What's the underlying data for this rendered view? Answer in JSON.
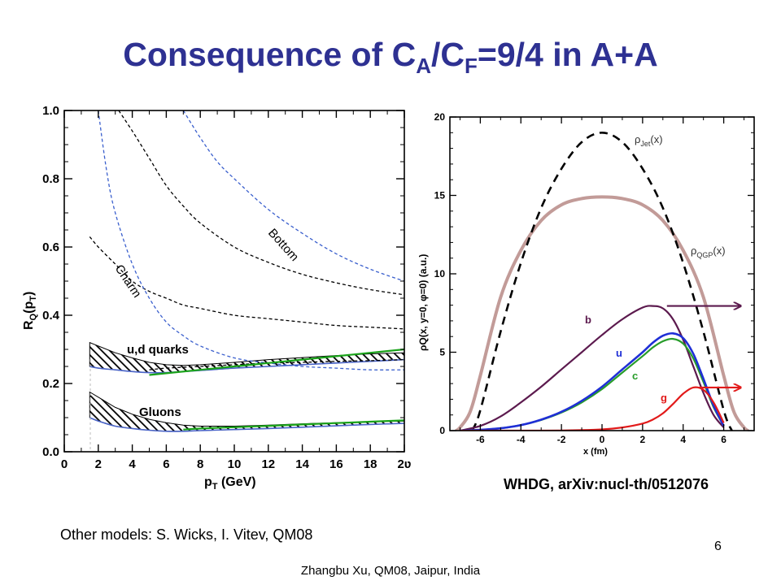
{
  "slide": {
    "title_prefix": "Consequence of C",
    "title_sub1": "A",
    "title_mid": "/C",
    "title_sub2": "F",
    "title_suffix": "=9/4 in A+A",
    "reference": "WHDG, arXiv:nucl-th/0512076",
    "other_models": "Other models: S. Wicks, I. Vitev, QM08",
    "page_number": "6",
    "footer": "Zhangbu Xu, QM08, Jaipur, India"
  },
  "chart_data": [
    {
      "type": "line",
      "ylabel_main": "R",
      "ylabel_sub": "Q",
      "ylabel_tail": "(p",
      "ylabel_sub2": "T",
      "ylabel_end": ")",
      "xlabel_main": "p",
      "xlabel_sub": "T",
      "xlabel_tail": " (GeV)",
      "xlim": [
        0,
        20
      ],
      "ylim": [
        0,
        1.0
      ],
      "x_ticks": [
        "0",
        "2",
        "4",
        "6",
        "8",
        "10",
        "12",
        "14",
        "16",
        "18",
        "2ʋ"
      ],
      "x_tick_values": [
        0,
        2,
        4,
        6,
        8,
        10,
        12,
        14,
        16,
        18,
        20
      ],
      "y_ticks": [
        "0.0",
        "0.2",
        "0.4",
        "0.6",
        "0.8",
        "1.0"
      ],
      "y_tick_values": [
        0,
        0.2,
        0.4,
        0.6,
        0.8,
        1.0
      ],
      "annotations": {
        "bottom": "Bottom",
        "charm": "Charm",
        "quarks": "u,d quarks",
        "gluons": "Gluons"
      },
      "colors": {
        "black_dash": "#000000",
        "blue_dash": "#3a5fcd",
        "green": "#1aa31a",
        "hatch": "#000000",
        "blue_solid": "#4a64c8"
      },
      "series": [
        {
          "style": "black-dashed",
          "x": [
            3.2,
            4,
            5,
            6,
            7,
            8,
            10,
            12,
            14,
            16,
            18,
            20
          ],
          "y": [
            1.0,
            0.94,
            0.86,
            0.78,
            0.72,
            0.67,
            0.6,
            0.555,
            0.52,
            0.495,
            0.475,
            0.46
          ]
        },
        {
          "style": "black-dashed",
          "x": [
            1.5,
            2,
            3,
            4,
            5,
            6,
            7,
            8,
            10,
            12,
            14,
            16,
            18,
            20
          ],
          "y": [
            0.63,
            0.6,
            0.55,
            0.5,
            0.47,
            0.45,
            0.43,
            0.42,
            0.4,
            0.39,
            0.38,
            0.37,
            0.365,
            0.36
          ]
        },
        {
          "style": "blue-dashed",
          "x": [
            7,
            8,
            9,
            10,
            12,
            14,
            16,
            18,
            20
          ],
          "y": [
            1.0,
            0.92,
            0.85,
            0.8,
            0.71,
            0.64,
            0.58,
            0.535,
            0.5
          ]
        },
        {
          "style": "blue-dashed",
          "x": [
            2,
            2.5,
            3,
            4,
            5,
            6,
            7,
            8,
            10,
            12,
            14,
            16,
            18,
            20
          ],
          "y": [
            1.0,
            0.82,
            0.7,
            0.55,
            0.45,
            0.38,
            0.34,
            0.31,
            0.275,
            0.26,
            0.25,
            0.245,
            0.24,
            0.24
          ]
        },
        {
          "style": "black-dashed",
          "x": [
            5,
            6,
            8,
            10,
            12,
            14,
            16,
            18,
            20
          ],
          "y": [
            0.24,
            0.245,
            0.25,
            0.255,
            0.26,
            0.262,
            0.265,
            0.267,
            0.27
          ]
        },
        {
          "style": "green",
          "x": [
            5,
            6,
            8,
            10,
            12,
            14,
            16,
            18,
            20
          ],
          "y": [
            0.225,
            0.23,
            0.24,
            0.25,
            0.26,
            0.27,
            0.28,
            0.29,
            0.3
          ]
        },
        {
          "style": "green",
          "x": [
            7,
            8,
            10,
            12,
            14,
            16,
            18,
            20
          ],
          "y": [
            0.065,
            0.068,
            0.072,
            0.076,
            0.08,
            0.084,
            0.088,
            0.092
          ]
        }
      ],
      "bands": [
        {
          "name": "u,d quarks",
          "x": [
            1.5,
            2,
            3,
            4,
            5,
            6,
            7,
            8,
            10,
            12,
            14,
            16,
            18,
            20
          ],
          "y_lower": [
            0.25,
            0.245,
            0.24,
            0.235,
            0.232,
            0.232,
            0.235,
            0.238,
            0.245,
            0.25,
            0.255,
            0.26,
            0.265,
            0.27
          ],
          "y_upper": [
            0.32,
            0.31,
            0.29,
            0.275,
            0.262,
            0.255,
            0.253,
            0.255,
            0.262,
            0.27,
            0.276,
            0.282,
            0.287,
            0.29
          ]
        },
        {
          "name": "Gluons",
          "x": [
            1.5,
            2,
            3,
            4,
            5,
            6,
            7,
            8,
            10,
            12,
            14,
            16,
            18,
            20
          ],
          "y_lower": [
            0.1,
            0.09,
            0.075,
            0.068,
            0.063,
            0.06,
            0.06,
            0.062,
            0.065,
            0.068,
            0.072,
            0.076,
            0.08,
            0.083
          ],
          "y_upper": [
            0.175,
            0.16,
            0.13,
            0.11,
            0.095,
            0.085,
            0.078,
            0.075,
            0.075,
            0.078,
            0.082,
            0.085,
            0.088,
            0.09
          ]
        }
      ]
    },
    {
      "type": "line",
      "xlabel": "x (fm)",
      "ylabel": "ρQ(x, y=0, φ=0)  (a.u.)",
      "xlim": [
        -7.5,
        7.5
      ],
      "ylim": [
        0,
        20
      ],
      "x_ticks": [
        "-6",
        "-4",
        "-2",
        "0",
        "2",
        "4",
        "6"
      ],
      "x_tick_values": [
        -6,
        -4,
        -2,
        0,
        2,
        4,
        6
      ],
      "y_ticks": [
        "0",
        "5",
        "10",
        "15",
        "20"
      ],
      "y_tick_values": [
        0,
        5,
        10,
        15,
        20
      ],
      "label_jet_main": "ρ",
      "label_jet_sub": "Jet",
      "label_jet_tail": "(x)",
      "label_qgp_main": "ρ",
      "label_qgp_sub": "QGP",
      "label_qgp_tail": "(x)",
      "curve_labels": {
        "b": "b",
        "u": "u",
        "c": "c",
        "g": "g"
      },
      "colors": {
        "jet": "#000000",
        "qgp": "#c29b98",
        "b": "#5c1a4e",
        "u": "#1f2fd6",
        "c": "#279c2a",
        "g": "#e21a1a"
      },
      "series": [
        {
          "name": "rho_jet",
          "x": [
            -6.4,
            -6,
            -5,
            -4,
            -3,
            -2,
            -1,
            0,
            1,
            2,
            3,
            4,
            5,
            6,
            6.4
          ],
          "y": [
            0,
            1.3,
            6.3,
            10.7,
            14.2,
            16.7,
            18.4,
            19,
            18.4,
            16.7,
            14.2,
            10.7,
            6.3,
            1.3,
            0
          ]
        },
        {
          "name": "rho_qgp",
          "x": [
            -7.2,
            -7,
            -6.5,
            -6,
            -5,
            -4,
            -3,
            -2,
            -1,
            0,
            1,
            2,
            3,
            4,
            5,
            6,
            6.5,
            7,
            7.2
          ],
          "y": [
            0,
            0.2,
            1.2,
            3.5,
            8.5,
            11.5,
            13.4,
            14.4,
            14.8,
            14.9,
            14.8,
            14.4,
            13.4,
            11.5,
            8.5,
            3.5,
            1.2,
            0.2,
            0
          ]
        },
        {
          "name": "b",
          "x": [
            -7,
            -6,
            -5,
            -4,
            -3,
            -2,
            -1,
            0,
            1,
            2,
            2.5,
            3,
            3.5,
            4,
            4.5,
            5,
            5.5,
            6
          ],
          "y": [
            0,
            0.3,
            0.9,
            1.8,
            2.8,
            3.9,
            5.0,
            6.1,
            7.1,
            7.85,
            7.95,
            7.8,
            7.1,
            5.8,
            4.1,
            2.4,
            1.0,
            0.2
          ]
        },
        {
          "name": "u",
          "x": [
            -7,
            -6,
            -5,
            -4,
            -3,
            -2,
            -1,
            0,
            1,
            2,
            2.5,
            3,
            3.5,
            4,
            4.5,
            5,
            5.5,
            6
          ],
          "y": [
            0,
            0.05,
            0.15,
            0.35,
            0.7,
            1.2,
            1.9,
            2.8,
            3.9,
            5.0,
            5.6,
            6.05,
            6.2,
            5.9,
            4.9,
            3.3,
            1.6,
            0.3
          ]
        },
        {
          "name": "c",
          "x": [
            -7,
            -6,
            -5,
            -4,
            -3,
            -2,
            -1,
            0,
            1,
            2,
            2.5,
            3,
            3.5,
            4,
            4.5,
            5,
            5.5,
            6
          ],
          "y": [
            0,
            0.05,
            0.15,
            0.35,
            0.68,
            1.15,
            1.8,
            2.65,
            3.7,
            4.75,
            5.3,
            5.7,
            5.85,
            5.55,
            4.6,
            3.1,
            1.5,
            0.3
          ]
        },
        {
          "name": "g",
          "x": [
            -7,
            -6,
            -5,
            -4,
            -3,
            -2,
            -1,
            0,
            1,
            2,
            2.5,
            3,
            3.5,
            4,
            4.5,
            5,
            5.5,
            6
          ],
          "y": [
            0,
            0,
            0,
            0,
            0,
            0.01,
            0.03,
            0.08,
            0.2,
            0.45,
            0.7,
            1.1,
            1.7,
            2.35,
            2.75,
            2.6,
            1.8,
            0.5
          ]
        }
      ],
      "arrows": [
        {
          "color_key": "b",
          "from": [
            3.2,
            7.95
          ],
          "to": [
            6.8,
            7.95
          ]
        },
        {
          "color_key": "g",
          "from": [
            4.8,
            2.75
          ],
          "to": [
            6.8,
            2.75
          ]
        }
      ]
    }
  ]
}
